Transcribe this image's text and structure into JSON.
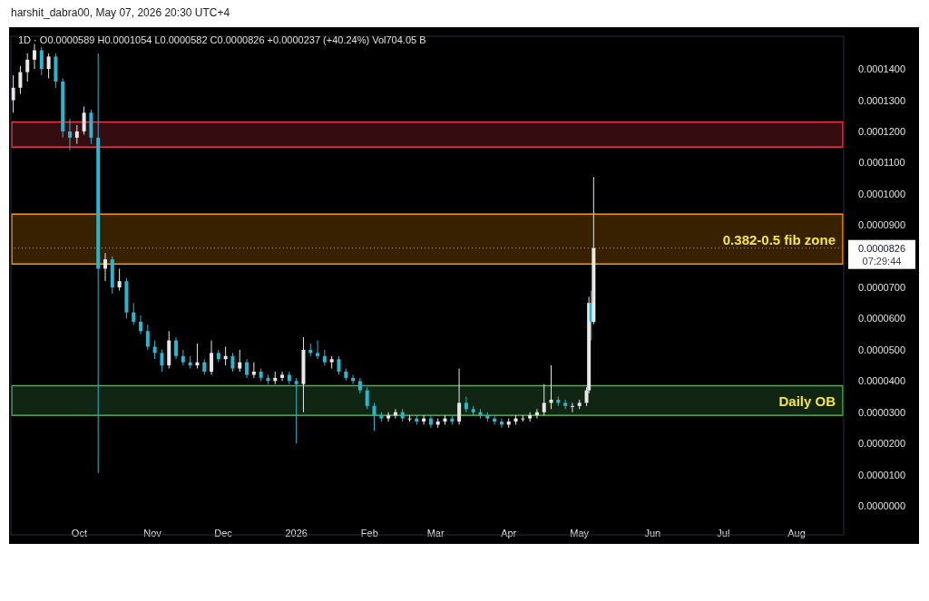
{
  "chart_data": {
    "type": "candlestick",
    "title": "1D · O0.0000589 H0.0001054 L0.0000582 C0.0000826 +0.0000237 (+40.24%) Vol704.05 B",
    "subtitle": "harshit_dabra00, May 07, 2026 20:30 UTC+4",
    "x": [
      "2025-09-03",
      "2025-09-06",
      "2025-09-09",
      "2025-09-12",
      "2025-09-15",
      "2025-09-18",
      "2025-09-21",
      "2025-09-24",
      "2025-09-27",
      "2025-09-30",
      "2025-10-03",
      "2025-10-06",
      "2025-10-09",
      "2025-10-12",
      "2025-10-15",
      "2025-10-18",
      "2025-10-21",
      "2025-10-24",
      "2025-10-27",
      "2025-10-30",
      "2025-11-02",
      "2025-11-05",
      "2025-11-08",
      "2025-11-11",
      "2025-11-14",
      "2025-11-17",
      "2025-11-20",
      "2025-11-23",
      "2025-11-26",
      "2025-11-29",
      "2025-12-02",
      "2025-12-05",
      "2025-12-08",
      "2025-12-11",
      "2025-12-14",
      "2025-12-17",
      "2025-12-20",
      "2025-12-23",
      "2025-12-26",
      "2025-12-29",
      "2026-01-01",
      "2026-01-04",
      "2026-01-07",
      "2026-01-10",
      "2026-01-13",
      "2026-01-16",
      "2026-01-19",
      "2026-01-22",
      "2026-01-25",
      "2026-01-28",
      "2026-01-31",
      "2026-02-03",
      "2026-02-06",
      "2026-02-09",
      "2026-02-12",
      "2026-02-15",
      "2026-02-18",
      "2026-02-21",
      "2026-02-24",
      "2026-02-27",
      "2026-03-02",
      "2026-03-05",
      "2026-03-08",
      "2026-03-11",
      "2026-03-14",
      "2026-03-17",
      "2026-03-20",
      "2026-03-23",
      "2026-03-26",
      "2026-03-29",
      "2026-04-01",
      "2026-04-04",
      "2026-04-07",
      "2026-04-10",
      "2026-04-13",
      "2026-04-16",
      "2026-04-19",
      "2026-04-22",
      "2026-04-25",
      "2026-04-28",
      "2026-05-01",
      "2026-05-04",
      "2026-05-05",
      "2026-05-06",
      "2026-05-07"
    ],
    "ohlc": [
      [
        0.00013,
        0.000138,
        0.000126,
        0.000134
      ],
      [
        0.000134,
        0.000141,
        0.000132,
        0.000139
      ],
      [
        0.000139,
        0.000145,
        0.000136,
        0.000143
      ],
      [
        0.000143,
        0.000148,
        0.00014,
        0.000146
      ],
      [
        0.000146,
        0.000147,
        0.000138,
        0.00014
      ],
      [
        0.00014,
        0.000145,
        0.000137,
        0.000144
      ],
      [
        0.000144,
        0.000145,
        0.000134,
        0.000136
      ],
      [
        0.000136,
        0.000137,
        0.000118,
        0.00012
      ],
      [
        0.00012,
        0.000124,
        0.000114,
        0.000118
      ],
      [
        0.000118,
        0.000122,
        0.000116,
        0.00012
      ],
      [
        0.00012,
        0.000128,
        0.000119,
        0.000126
      ],
      [
        0.000126,
        0.000127,
        0.000116,
        0.000118
      ],
      [
        0.000118,
        0.000145,
        1.05e-05,
        7.6e-05
      ],
      [
        7.6e-05,
        8.1e-05,
        7.2e-05,
        7.9e-05
      ],
      [
        7.9e-05,
        8e-05,
        6.8e-05,
        7e-05
      ],
      [
        7e-05,
        7.6e-05,
        6.9e-05,
        7.2e-05
      ],
      [
        7.2e-05,
        7.3e-05,
        6e-05,
        6.2e-05
      ],
      [
        6.2e-05,
        6.5e-05,
        5.8e-05,
        5.9e-05
      ],
      [
        5.9e-05,
        6.1e-05,
        5.5e-05,
        5.6e-05
      ],
      [
        5.6e-05,
        5.8e-05,
        5e-05,
        5.1e-05
      ],
      [
        5.1e-05,
        5.3e-05,
        4.7e-05,
        4.9e-05
      ],
      [
        4.9e-05,
        5e-05,
        4.3e-05,
        4.5e-05
      ],
      [
        4.5e-05,
        5.6e-05,
        4.4e-05,
        5.3e-05
      ],
      [
        5.3e-05,
        5.4e-05,
        4.7e-05,
        4.8e-05
      ],
      [
        4.8e-05,
        5e-05,
        4.5e-05,
        4.6e-05
      ],
      [
        4.6e-05,
        4.8e-05,
        4.4e-05,
        4.5e-05
      ],
      [
        4.5e-05,
        5.2e-05,
        4.4e-05,
        4.6e-05
      ],
      [
        4.6e-05,
        4.7e-05,
        4.2e-05,
        4.3e-05
      ],
      [
        4.3e-05,
        5.3e-05,
        4.2e-05,
        4.9e-05
      ],
      [
        4.9e-05,
        5e-05,
        4.6e-05,
        4.7e-05
      ],
      [
        4.7e-05,
        5.1e-05,
        4.5e-05,
        4.8e-05
      ],
      [
        4.8e-05,
        4.9e-05,
        4.3e-05,
        4.4e-05
      ],
      [
        4.4e-05,
        5e-05,
        4.3e-05,
        4.6e-05
      ],
      [
        4.6e-05,
        4.7e-05,
        4.1e-05,
        4.2e-05
      ],
      [
        4.2e-05,
        4.6e-05,
        4.1e-05,
        4.3e-05
      ],
      [
        4.3e-05,
        4.4e-05,
        4e-05,
        4.1e-05
      ],
      [
        4.1e-05,
        4.2e-05,
        3.9e-05,
        4e-05
      ],
      [
        4e-05,
        4.3e-05,
        3.9e-05,
        4.1e-05
      ],
      [
        4.1e-05,
        4.3e-05,
        4e-05,
        4.2e-05
      ],
      [
        4.2e-05,
        4.3e-05,
        3.9e-05,
        4e-05
      ],
      [
        4e-05,
        4.1e-05,
        2e-05,
        3.9e-05
      ],
      [
        3.9e-05,
        5.4e-05,
        3e-05,
        5e-05
      ],
      [
        5e-05,
        5.2e-05,
        4.8e-05,
        4.9e-05
      ],
      [
        4.9e-05,
        5.3e-05,
        4.7e-05,
        4.8e-05
      ],
      [
        4.8e-05,
        5e-05,
        4.5e-05,
        4.6e-05
      ],
      [
        4.6e-05,
        4.8e-05,
        4.4e-05,
        4.7e-05
      ],
      [
        4.7e-05,
        4.8e-05,
        4.2e-05,
        4.3e-05
      ],
      [
        4.3e-05,
        4.4e-05,
        4e-05,
        4.1e-05
      ],
      [
        4.1e-05,
        4.2e-05,
        3.9e-05,
        4e-05
      ],
      [
        4e-05,
        4.1e-05,
        3.6e-05,
        3.7e-05
      ],
      [
        3.7e-05,
        3.8e-05,
        3.1e-05,
        3.2e-05
      ],
      [
        3.2e-05,
        3.3e-05,
        2.4e-05,
        2.9e-05
      ],
      [
        2.9e-05,
        3e-05,
        2.7e-05,
        2.8e-05
      ],
      [
        2.8e-05,
        3e-05,
        2.7e-05,
        2.9e-05
      ],
      [
        2.9e-05,
        3.1e-05,
        2.8e-05,
        3e-05
      ],
      [
        3e-05,
        3.1e-05,
        2.7e-05,
        2.8e-05
      ],
      [
        2.8e-05,
        2.9e-05,
        2.7e-05,
        2.8e-05
      ],
      [
        2.8e-05,
        2.9e-05,
        2.6e-05,
        2.7e-05
      ],
      [
        2.7e-05,
        2.9e-05,
        2.6e-05,
        2.8e-05
      ],
      [
        2.8e-05,
        2.9e-05,
        2.5e-05,
        2.6e-05
      ],
      [
        2.6e-05,
        2.8e-05,
        2.5e-05,
        2.7e-05
      ],
      [
        2.7e-05,
        2.9e-05,
        2.6e-05,
        2.8e-05
      ],
      [
        2.8e-05,
        2.9e-05,
        2.6e-05,
        2.7e-05
      ],
      [
        2.7e-05,
        4.4e-05,
        2.6e-05,
        3.3e-05
      ],
      [
        3.3e-05,
        3.5e-05,
        3e-05,
        3.1e-05
      ],
      [
        3.1e-05,
        3.2e-05,
        2.9e-05,
        3e-05
      ],
      [
        3e-05,
        3.1e-05,
        2.8e-05,
        2.9e-05
      ],
      [
        2.9e-05,
        3e-05,
        2.7e-05,
        2.8e-05
      ],
      [
        2.8e-05,
        2.9e-05,
        2.6e-05,
        2.7e-05
      ],
      [
        2.7e-05,
        2.8e-05,
        2.5e-05,
        2.6e-05
      ],
      [
        2.6e-05,
        2.8e-05,
        2.5e-05,
        2.7e-05
      ],
      [
        2.7e-05,
        2.9e-05,
        2.6e-05,
        2.8e-05
      ],
      [
        2.8e-05,
        2.9e-05,
        2.7e-05,
        2.8e-05
      ],
      [
        2.8e-05,
        3e-05,
        2.7e-05,
        2.9e-05
      ],
      [
        2.9e-05,
        3.1e-05,
        2.8e-05,
        3e-05
      ],
      [
        3e-05,
        3.9e-05,
        2.9e-05,
        3.3e-05
      ],
      [
        3.3e-05,
        4.5e-05,
        3.1e-05,
        3.4e-05
      ],
      [
        3.4e-05,
        3.5e-05,
        3.2e-05,
        3.3e-05
      ],
      [
        3.3e-05,
        3.4e-05,
        3.1e-05,
        3.2e-05
      ],
      [
        3.2e-05,
        3.3e-05,
        3e-05,
        3.2e-05
      ],
      [
        3.2e-05,
        3.4e-05,
        3.1e-05,
        3.3e-05
      ],
      [
        3.3e-05,
        3.8e-05,
        3.2e-05,
        3.7e-05
      ],
      [
        3.7e-05,
        6.7e-05,
        3.6e-05,
        6.5e-05
      ],
      [
        6.5e-05,
        6.9e-05,
        5.3e-05,
        5.9e-05
      ],
      [
        5.89e-05,
        0.0001054,
        5.82e-05,
        8.26e-05
      ]
    ],
    "xlim": [
      "2025-09-02",
      "2026-08-21"
    ],
    "xticks": [
      {
        "value": "2025-10-01",
        "label": "Oct"
      },
      {
        "value": "2025-11-01",
        "label": "Nov"
      },
      {
        "value": "2025-12-01",
        "label": "Dec"
      },
      {
        "value": "2026-01-01",
        "label": "2026"
      },
      {
        "value": "2026-02-01",
        "label": "Feb"
      },
      {
        "value": "2026-03-01",
        "label": "Mar"
      },
      {
        "value": "2026-04-01",
        "label": "Apr"
      },
      {
        "value": "2026-05-01",
        "label": "May"
      },
      {
        "value": "2026-06-01",
        "label": "Jun"
      },
      {
        "value": "2026-07-01",
        "label": "Jul"
      },
      {
        "value": "2026-08-01",
        "label": "Aug"
      }
    ],
    "ylim": [
      -9.3e-06,
      0.0001505
    ],
    "yticks": [
      {
        "value": 0,
        "label": "0.0000000"
      },
      {
        "value": 1e-05,
        "label": "0.0000100"
      },
      {
        "value": 2e-05,
        "label": "0.0000200"
      },
      {
        "value": 3e-05,
        "label": "0.0000300"
      },
      {
        "value": 4e-05,
        "label": "0.0000400"
      },
      {
        "value": 5e-05,
        "label": "0.0000500"
      },
      {
        "value": 6e-05,
        "label": "0.0000600"
      },
      {
        "value": 7e-05,
        "label": "0.0000700"
      },
      {
        "value": 9e-05,
        "label": "0.0000900"
      },
      {
        "value": 0.0001,
        "label": "0.0001000"
      },
      {
        "value": 0.00011,
        "label": "0.0001100"
      },
      {
        "value": 0.00012,
        "label": "0.0001200"
      },
      {
        "value": 0.00013,
        "label": "0.0001300"
      },
      {
        "value": 0.00014,
        "label": "0.0001400"
      }
    ],
    "bands": [
      {
        "axis": "y",
        "from": 0.000115,
        "to": 0.000123,
        "color": "#f23645"
      },
      {
        "axis": "y",
        "from": 7.75e-05,
        "to": 9.35e-05,
        "color": "#ff9800",
        "label": "0.382-0.5 fib zone"
      },
      {
        "axis": "y",
        "from": 2.9e-05,
        "to": 3.85e-05,
        "color": "#4caf50",
        "label": "Daily OB"
      }
    ],
    "ref_lines": [
      {
        "axis": "y",
        "value": 8.26e-05,
        "label": "0.0000826",
        "line_style": "dotted"
      }
    ],
    "annotations": [
      "07:29:44"
    ],
    "grid": false
  }
}
